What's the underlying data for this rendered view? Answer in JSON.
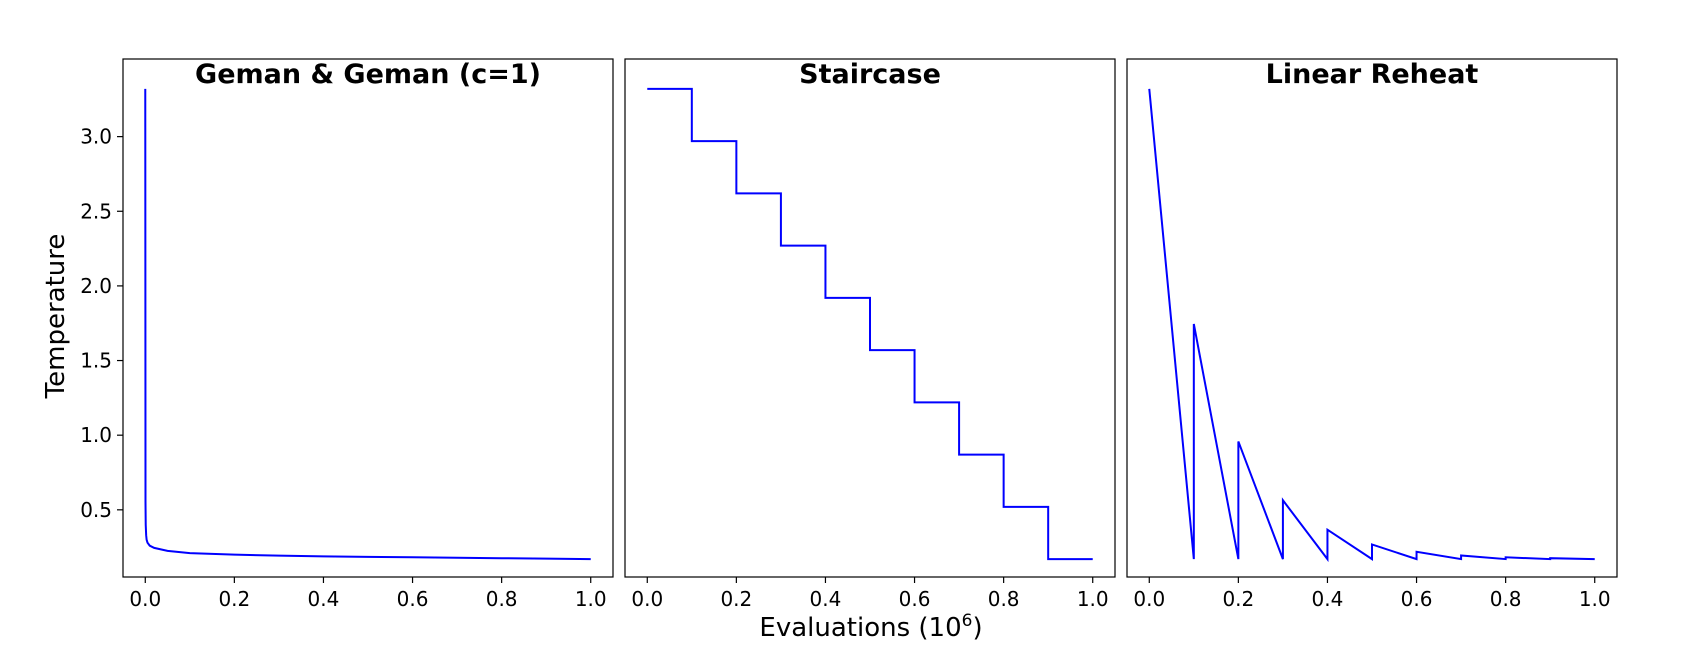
{
  "figure": {
    "ylabel": "Temperature",
    "xlabel_text": "Evaluations (10",
    "xlabel_exp": "6",
    "xlabel_close": ")"
  },
  "chart_data": [
    {
      "type": "line",
      "title": "Geman & Geman (c=1)",
      "xlim": [
        -0.05,
        1.05
      ],
      "ylim": [
        0.05,
        3.52
      ],
      "x_ticks": [
        0.0,
        0.2,
        0.4,
        0.6,
        0.8,
        1.0
      ],
      "x_tick_labels": [
        "0.0",
        "0.2",
        "0.4",
        "0.6",
        "0.8",
        "1.0"
      ],
      "y_ticks": [
        0.5,
        1.0,
        1.5,
        2.0,
        2.5,
        3.0
      ],
      "y_tick_labels": [
        "0.5",
        "1.0",
        "1.5",
        "2.0",
        "2.5",
        "3.0"
      ],
      "line_color": "#0000ff",
      "series": [
        {
          "x": [
            0.0,
            0.0005,
            0.001,
            0.002,
            0.003,
            0.005,
            0.01,
            0.02,
            0.05,
            0.1,
            0.2,
            0.3,
            0.4,
            0.5,
            0.6,
            0.7,
            0.8,
            0.9,
            1.0
          ],
          "y": [
            3.32,
            0.55,
            0.4,
            0.33,
            0.3,
            0.28,
            0.26,
            0.245,
            0.225,
            0.21,
            0.2,
            0.193,
            0.188,
            0.185,
            0.182,
            0.179,
            0.176,
            0.173,
            0.17
          ]
        }
      ]
    },
    {
      "type": "line",
      "title": "Staircase",
      "xlim": [
        -0.05,
        1.05
      ],
      "ylim": [
        0.05,
        3.52
      ],
      "x_ticks": [
        0.0,
        0.2,
        0.4,
        0.6,
        0.8,
        1.0
      ],
      "x_tick_labels": [
        "0.0",
        "0.2",
        "0.4",
        "0.6",
        "0.8",
        "1.0"
      ],
      "line_color": "#0000ff",
      "series": [
        {
          "x": [
            0.0,
            0.1,
            0.1,
            0.2,
            0.2,
            0.3,
            0.3,
            0.4,
            0.4,
            0.5,
            0.5,
            0.6,
            0.6,
            0.7,
            0.7,
            0.8,
            0.8,
            0.9,
            0.9,
            1.0
          ],
          "y": [
            3.32,
            3.32,
            2.97,
            2.97,
            2.62,
            2.62,
            2.27,
            2.27,
            1.92,
            1.92,
            1.57,
            1.57,
            1.22,
            1.22,
            0.87,
            0.87,
            0.52,
            0.52,
            0.17,
            0.17
          ]
        }
      ]
    },
    {
      "type": "line",
      "title": "Linear Reheat",
      "xlim": [
        -0.05,
        1.05
      ],
      "ylim": [
        0.05,
        3.52
      ],
      "x_ticks": [
        0.0,
        0.2,
        0.4,
        0.6,
        0.8,
        1.0
      ],
      "x_tick_labels": [
        "0.0",
        "0.2",
        "0.4",
        "0.6",
        "0.8",
        "1.0"
      ],
      "line_color": "#0000ff",
      "series": [
        {
          "x": [
            0.0,
            0.1,
            0.1,
            0.2,
            0.2,
            0.3,
            0.3,
            0.4,
            0.4,
            0.5,
            0.5,
            0.6,
            0.6,
            0.7,
            0.7,
            0.8,
            0.8,
            0.9,
            0.9,
            1.0
          ],
          "y": [
            3.32,
            0.17,
            1.745,
            0.17,
            0.958,
            0.17,
            0.564,
            0.17,
            0.367,
            0.17,
            0.268,
            0.17,
            0.219,
            0.17,
            0.194,
            0.17,
            0.182,
            0.17,
            0.176,
            0.17
          ]
        }
      ]
    }
  ]
}
